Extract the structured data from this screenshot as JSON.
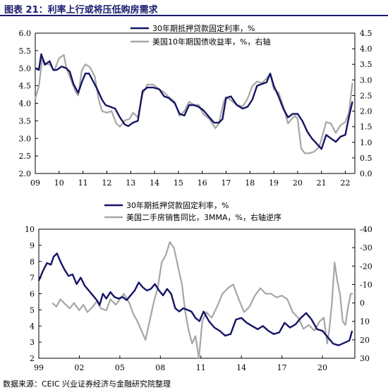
{
  "header": {
    "title": "图表 21：利率上行或将压低购房需求"
  },
  "footer": {
    "source": "数据来源：CEIC 兴业证券经济与金融研究院整理"
  },
  "colors": {
    "navy": "#141466",
    "gray": "#a6a6a6",
    "title": "#1a1a6e"
  },
  "chart_data": [
    {
      "type": "line",
      "title": "",
      "ylim": [
        2.0,
        6.0
      ],
      "y2lim": [
        0.0,
        4.5
      ],
      "left_ticks": [
        "6.0",
        "5.5",
        "5.0",
        "4.5",
        "4.0",
        "3.5",
        "3.0",
        "2.5",
        "2.0"
      ],
      "right_ticks": [
        "4.5",
        "4.0",
        "3.5",
        "3.0",
        "2.5",
        "2.0",
        "1.5",
        "1.0",
        "0.5",
        "0.0"
      ],
      "x_ticks": [
        "09",
        "10",
        "11",
        "12",
        "13",
        "14",
        "15",
        "16",
        "17",
        "18",
        "19",
        "20",
        "21",
        "22"
      ],
      "legend": [
        "30年期抵押贷款固定利率，%",
        "美国10年期国债收益率，%，右轴"
      ],
      "series": [
        {
          "name": "30年期抵押贷款固定利率，%",
          "axis": "left",
          "x": [
            2009.0,
            2009.15,
            2009.25,
            2009.4,
            2009.6,
            2009.75,
            2009.9,
            2010.1,
            2010.3,
            2010.45,
            2010.6,
            2010.8,
            2010.95,
            2011.1,
            2011.25,
            2011.45,
            2011.6,
            2011.8,
            2011.95,
            2012.15,
            2012.35,
            2012.55,
            2012.75,
            2012.9,
            2013.1,
            2013.3,
            2013.5,
            2013.7,
            2013.95,
            2014.2,
            2014.4,
            2014.6,
            2014.85,
            2015.05,
            2015.25,
            2015.45,
            2015.65,
            2015.85,
            2016.05,
            2016.3,
            2016.5,
            2016.7,
            2016.85,
            2017.0,
            2017.2,
            2017.45,
            2017.7,
            2017.9,
            2018.1,
            2018.3,
            2018.5,
            2018.7,
            2018.85,
            2019.0,
            2019.2,
            2019.4,
            2019.6,
            2019.8,
            2020.0,
            2020.2,
            2020.4,
            2020.6,
            2020.8,
            2021.0,
            2021.2,
            2021.4,
            2021.6,
            2021.8,
            2022.0,
            2022.15,
            2022.3
          ],
          "y": [
            5.0,
            4.95,
            5.4,
            5.1,
            5.2,
            4.95,
            4.95,
            5.05,
            5.0,
            4.9,
            4.55,
            4.3,
            4.6,
            4.85,
            4.85,
            4.6,
            4.4,
            4.1,
            3.95,
            3.9,
            3.85,
            3.6,
            3.4,
            3.35,
            3.45,
            3.5,
            4.35,
            4.45,
            4.45,
            4.4,
            4.2,
            4.15,
            4.0,
            3.7,
            3.65,
            3.95,
            3.95,
            3.9,
            3.8,
            3.6,
            3.45,
            3.45,
            3.55,
            4.15,
            4.2,
            3.95,
            3.85,
            3.9,
            4.1,
            4.5,
            4.55,
            4.6,
            4.85,
            4.5,
            4.2,
            3.85,
            3.6,
            3.7,
            3.7,
            3.5,
            3.2,
            3.0,
            2.85,
            2.7,
            3.1,
            3.0,
            2.9,
            3.05,
            3.1,
            3.6,
            4.05
          ]
        },
        {
          "name": "美国10年期国债收益率，%，右轴",
          "axis": "right",
          "x": [
            2009.0,
            2009.15,
            2009.3,
            2009.45,
            2009.6,
            2009.8,
            2010.0,
            2010.2,
            2010.3,
            2010.5,
            2010.7,
            2010.8,
            2010.95,
            2011.1,
            2011.3,
            2011.5,
            2011.65,
            2011.8,
            2012.0,
            2012.2,
            2012.4,
            2012.55,
            2012.75,
            2012.95,
            2013.1,
            2013.3,
            2013.5,
            2013.7,
            2013.95,
            2014.2,
            2014.4,
            2014.6,
            2014.85,
            2015.05,
            2015.25,
            2015.45,
            2015.65,
            2015.85,
            2016.05,
            2016.3,
            2016.55,
            2016.7,
            2016.9,
            2017.0,
            2017.2,
            2017.45,
            2017.7,
            2017.9,
            2018.1,
            2018.3,
            2018.5,
            2018.7,
            2018.85,
            2019.0,
            2019.2,
            2019.4,
            2019.6,
            2019.75,
            2019.9,
            2020.0,
            2020.15,
            2020.3,
            2020.5,
            2020.7,
            2020.9,
            2021.0,
            2021.2,
            2021.4,
            2021.6,
            2021.8,
            2022.0,
            2022.15,
            2022.3
          ],
          "y": [
            2.4,
            2.8,
            3.7,
            3.5,
            3.5,
            3.3,
            3.7,
            3.8,
            3.4,
            3.0,
            2.6,
            2.5,
            3.3,
            3.5,
            3.4,
            3.1,
            2.4,
            2.0,
            1.95,
            2.0,
            1.6,
            1.5,
            1.7,
            1.75,
            1.95,
            1.8,
            2.55,
            2.85,
            2.85,
            2.7,
            2.6,
            2.45,
            2.3,
            1.85,
            2.0,
            2.3,
            2.2,
            2.2,
            1.9,
            1.75,
            1.45,
            1.6,
            2.3,
            2.45,
            2.35,
            2.2,
            2.15,
            2.4,
            2.8,
            2.95,
            2.9,
            3.05,
            3.2,
            2.7,
            2.6,
            2.15,
            1.6,
            1.75,
            1.85,
            1.75,
            0.8,
            0.65,
            0.65,
            0.7,
            0.85,
            1.1,
            1.65,
            1.6,
            1.3,
            1.55,
            1.65,
            1.95,
            2.9
          ]
        }
      ]
    },
    {
      "type": "line",
      "title": "",
      "ylim": [
        2,
        10
      ],
      "y2lim": [
        30,
        -40
      ],
      "left_ticks": [
        "10",
        "9",
        "8",
        "7",
        "6",
        "5",
        "4",
        "3",
        "2"
      ],
      "right_ticks": [
        "-40",
        "-30",
        "-20",
        "-10",
        "0",
        "10",
        "20",
        "30"
      ],
      "x_ticks": [
        "99",
        "02",
        "05",
        "08",
        "11",
        "14",
        "17",
        "20"
      ],
      "legend": [
        "30年期抵押贷款固定利率，%",
        "美国二手房销售同比，3MMA，%，右轴逆序"
      ],
      "series": [
        {
          "name": "30年期抵押贷款固定利率，%",
          "axis": "left",
          "x": [
            1999.0,
            1999.3,
            1999.6,
            1999.9,
            2000.1,
            2000.35,
            2000.6,
            2000.9,
            2001.2,
            2001.5,
            2001.8,
            2002.1,
            2002.4,
            2002.7,
            2003.0,
            2003.3,
            2003.5,
            2003.75,
            2004.0,
            2004.3,
            2004.6,
            2004.9,
            2005.2,
            2005.5,
            2005.8,
            2006.1,
            2006.4,
            2006.7,
            2007.0,
            2007.3,
            2007.6,
            2007.9,
            2008.2,
            2008.5,
            2008.8,
            2009.1,
            2009.4,
            2009.7,
            2010.0,
            2010.3,
            2010.6,
            2010.9,
            2011.2,
            2011.6,
            2012.0,
            2012.4,
            2012.8,
            2013.2,
            2013.6,
            2014.0,
            2014.4,
            2014.8,
            2015.2,
            2015.6,
            2016.0,
            2016.4,
            2016.8,
            2017.2,
            2017.6,
            2018.0,
            2018.4,
            2018.8,
            2019.2,
            2019.6,
            2020.0,
            2020.4,
            2020.8,
            2021.2,
            2021.6,
            2022.0,
            2022.2
          ],
          "y": [
            6.8,
            7.4,
            7.9,
            7.8,
            8.3,
            8.5,
            8.0,
            7.5,
            7.1,
            7.2,
            6.6,
            7.0,
            6.5,
            6.2,
            5.9,
            5.6,
            5.3,
            6.0,
            5.7,
            6.1,
            5.8,
            5.7,
            5.8,
            5.6,
            5.9,
            6.2,
            6.7,
            6.4,
            6.2,
            6.3,
            6.6,
            6.2,
            5.9,
            6.3,
            6.0,
            5.1,
            4.9,
            5.1,
            5.0,
            4.9,
            4.5,
            4.3,
            4.9,
            4.3,
            3.9,
            3.7,
            3.4,
            3.5,
            4.4,
            4.5,
            4.2,
            4.0,
            3.8,
            4.0,
            3.7,
            3.5,
            3.6,
            4.2,
            3.9,
            4.1,
            4.5,
            4.8,
            4.4,
            3.8,
            3.7,
            3.3,
            2.9,
            2.8,
            2.95,
            3.1,
            3.7
          ]
        },
        {
          "name": "美国二手房销售同比，3MMA，%，右轴逆序",
          "axis": "right",
          "x": [
            2000.0,
            2000.3,
            2000.6,
            2001.0,
            2001.3,
            2001.6,
            2002.0,
            2002.3,
            2002.6,
            2003.0,
            2003.3,
            2003.6,
            2004.0,
            2004.3,
            2004.7,
            2005.0,
            2005.3,
            2005.7,
            2006.0,
            2006.3,
            2006.6,
            2006.9,
            2007.2,
            2007.5,
            2007.8,
            2008.1,
            2008.4,
            2008.7,
            2009.0,
            2009.3,
            2009.6,
            2009.85,
            2010.1,
            2010.35,
            2010.6,
            2010.85,
            2011.1,
            2011.4,
            2011.8,
            2012.2,
            2012.6,
            2013.0,
            2013.4,
            2013.8,
            2014.2,
            2014.6,
            2015.0,
            2015.4,
            2015.8,
            2016.2,
            2016.6,
            2017.0,
            2017.4,
            2017.8,
            2018.2,
            2018.6,
            2019.0,
            2019.4,
            2019.8,
            2020.1,
            2020.35,
            2020.5,
            2020.7,
            2020.9,
            2021.1,
            2021.3,
            2021.5,
            2021.7,
            2021.9,
            2022.1,
            2022.25
          ],
          "y": [
            0,
            2,
            -2,
            1,
            3,
            0,
            4,
            1,
            5,
            2,
            -1,
            3,
            4,
            -2,
            1,
            -2,
            -5,
            0,
            6,
            10,
            15,
            20,
            10,
            0,
            -8,
            -22,
            -26,
            -33,
            -30,
            -20,
            -10,
            5,
            15,
            22,
            18,
            30,
            10,
            5,
            8,
            2,
            -5,
            -8,
            -10,
            -2,
            5,
            2,
            -4,
            -8,
            -5,
            -5,
            -3,
            -4,
            -2,
            5,
            8,
            14,
            12,
            15,
            10,
            8,
            22,
            15,
            0,
            -22,
            -12,
            -5,
            10,
            12,
            2,
            -5,
            -5
          ]
        }
      ]
    }
  ]
}
